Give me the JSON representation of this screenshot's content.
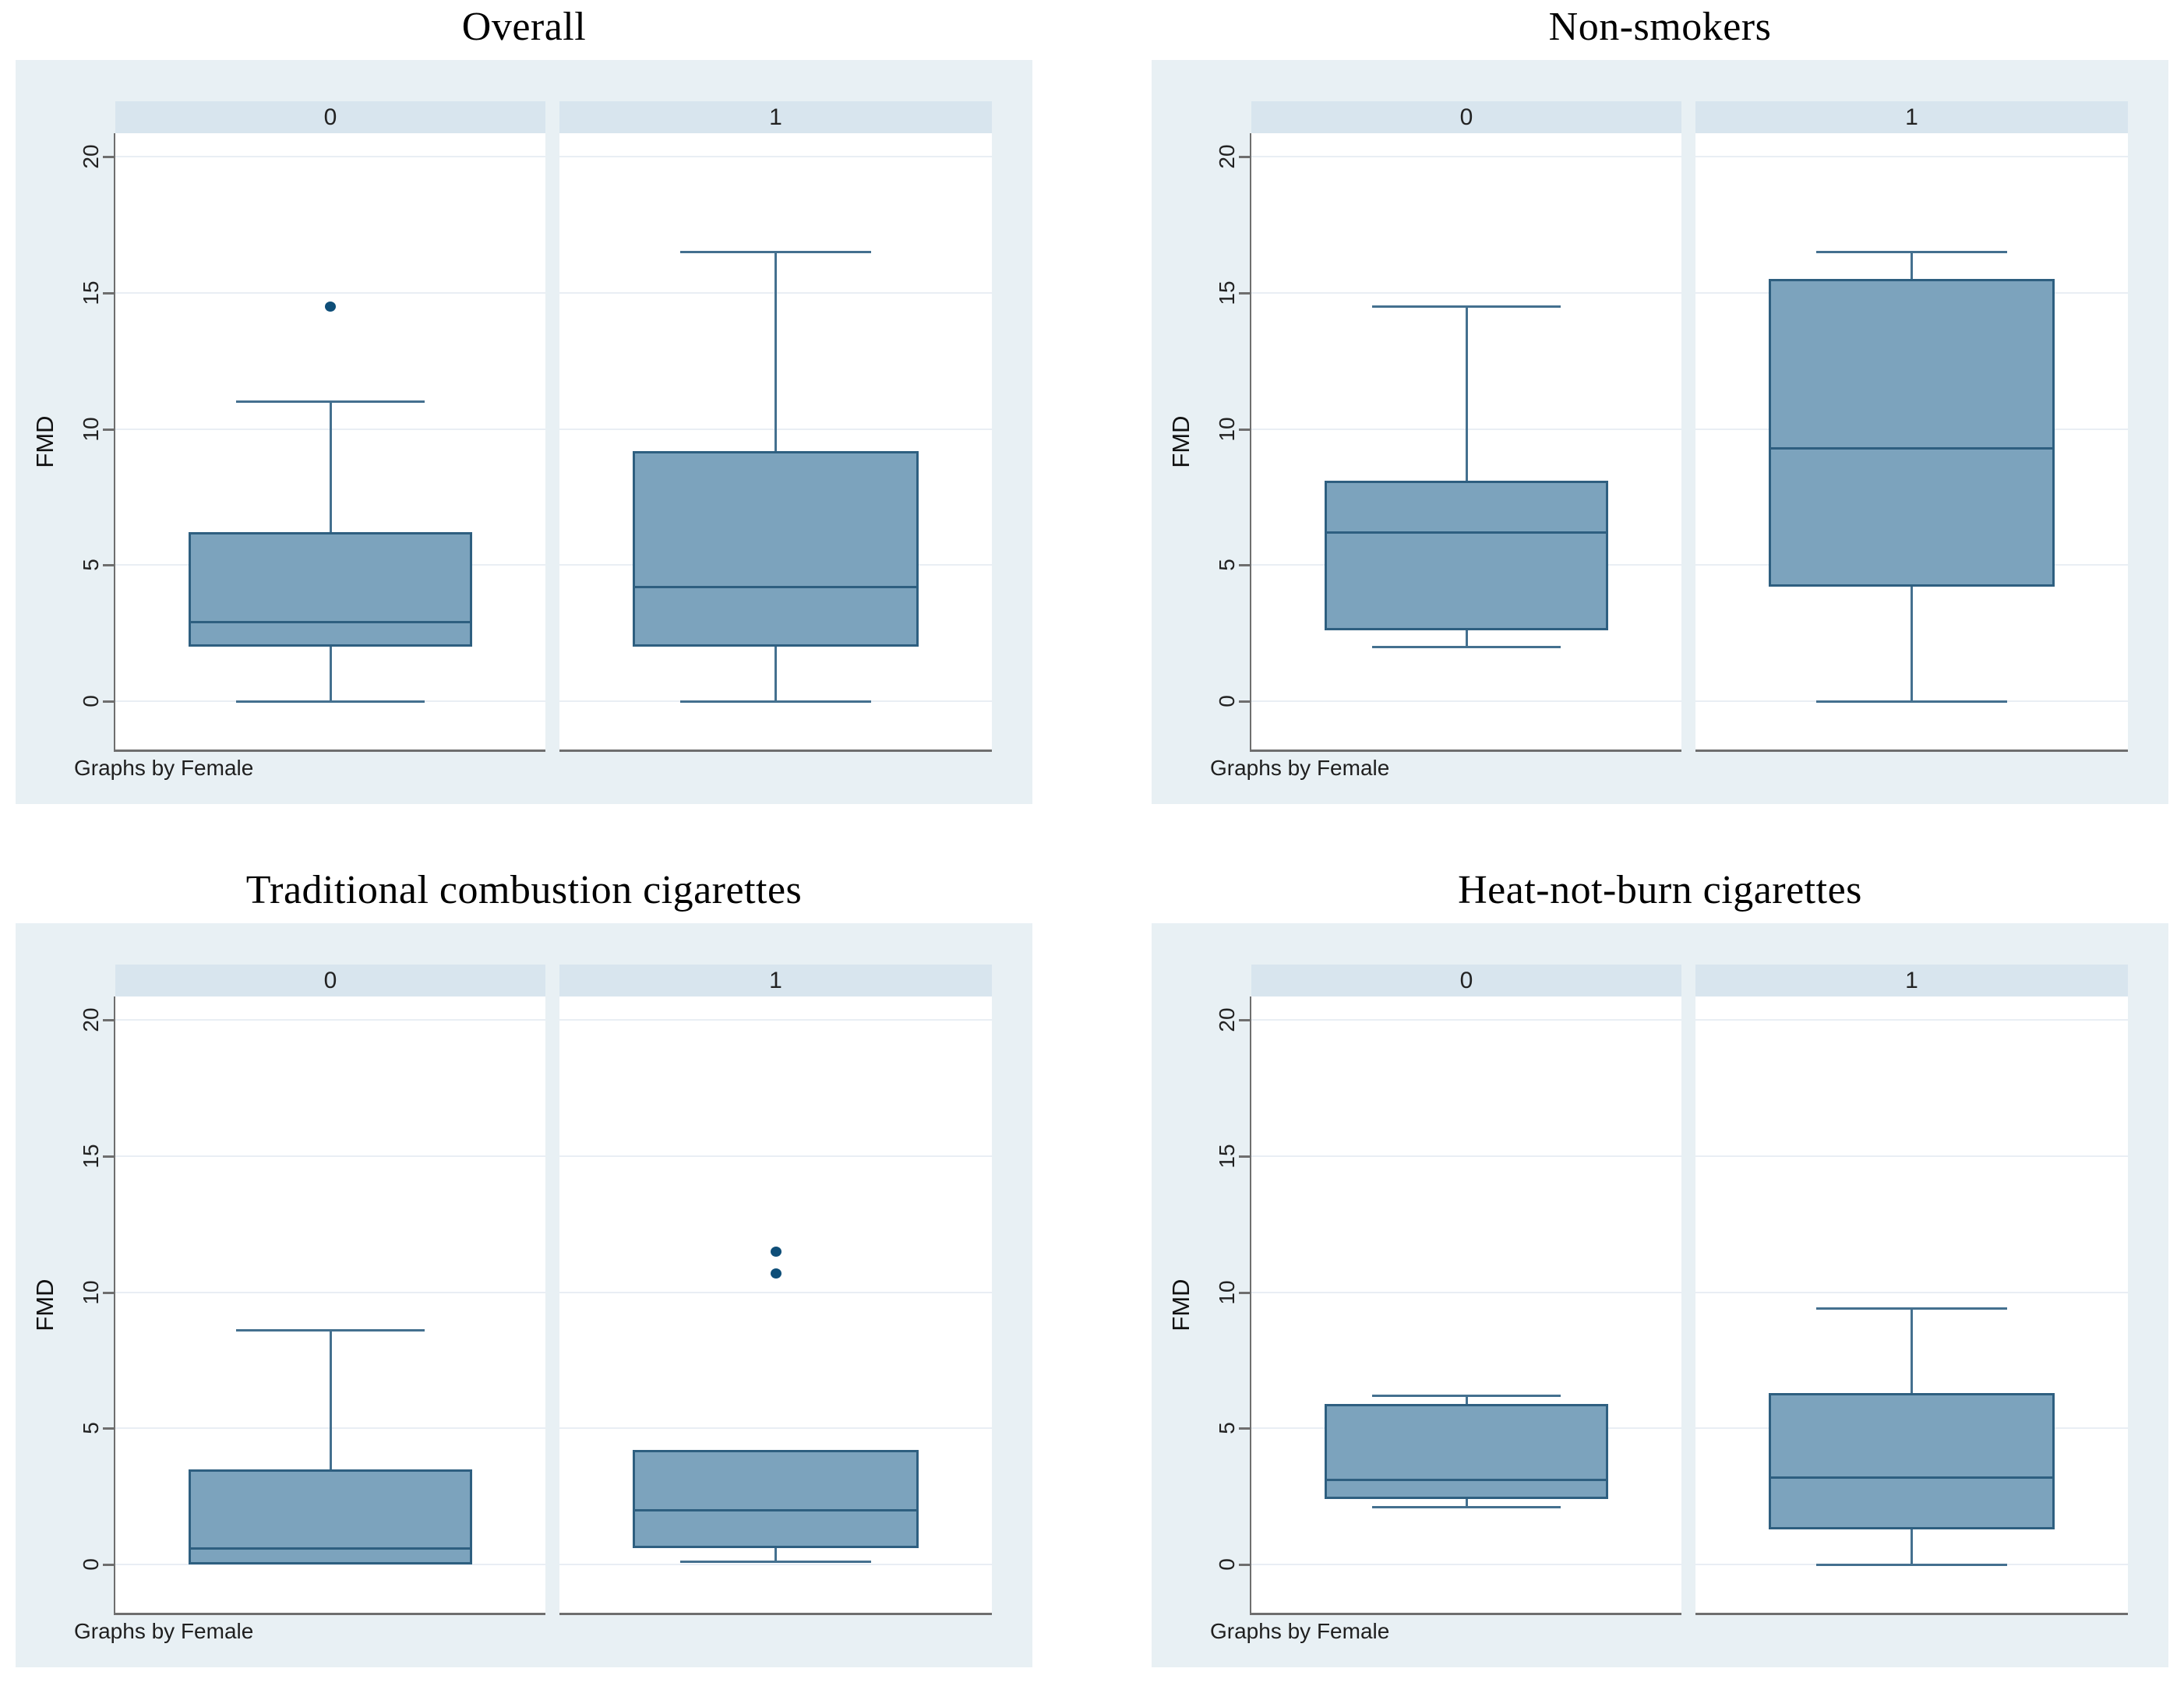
{
  "figure": {
    "note": "Graphs by Female",
    "ylabel": "FMD",
    "group_labels": [
      "0",
      "1"
    ]
  },
  "colors": {
    "page_bg": "#ffffff",
    "panel_bg": "#e8f0f4",
    "strip_bg": "#d8e5ee",
    "plot_bg": "#ffffff",
    "gridline": "#e9eef4",
    "box_fill": "#7ca3bd",
    "box_border": "#2e5f80",
    "whisker": "#44708f",
    "outlier_dot": "#0e4e78",
    "axis": "#6e6e6e",
    "text": "#111111"
  },
  "chart_data": {
    "type": "boxplot",
    "layout": "2x2 grid of panels; each panel contains two box plots split by Female (columns labeled 0 and 1), Stata graph-by style",
    "ylabel": "FMD",
    "yticks": [
      0,
      5,
      10,
      15,
      20
    ],
    "ylim": [
      0,
      20
    ],
    "grid": true,
    "note": "Graphs by Female",
    "group_labels": [
      "0",
      "1"
    ],
    "panels": [
      {
        "title": "Overall",
        "boxes": [
          {
            "group": "0",
            "min": 0,
            "q1": 2.0,
            "median": 2.9,
            "q3": 6.2,
            "max": 11.0,
            "outliers": [
              14.5
            ]
          },
          {
            "group": "1",
            "min": 0,
            "q1": 2.0,
            "median": 4.2,
            "q3": 9.2,
            "max": 16.5,
            "outliers": []
          }
        ]
      },
      {
        "title": "Non-smokers",
        "boxes": [
          {
            "group": "0",
            "min": 2.0,
            "q1": 2.6,
            "median": 6.2,
            "q3": 8.1,
            "max": 14.5,
            "outliers": []
          },
          {
            "group": "1",
            "min": 0,
            "q1": 4.2,
            "median": 9.3,
            "q3": 15.5,
            "max": 16.5,
            "outliers": []
          }
        ]
      },
      {
        "title": "Traditional combustion cigarettes",
        "boxes": [
          {
            "group": "0",
            "min": 0,
            "q1": 0,
            "median": 0.6,
            "q3": 3.5,
            "max": 8.6,
            "outliers": []
          },
          {
            "group": "1",
            "min": 0.1,
            "q1": 0.6,
            "median": 2.0,
            "q3": 4.2,
            "max": 4.2,
            "outliers": [
              10.7,
              11.5
            ]
          }
        ]
      },
      {
        "title": "Heat-not-burn cigarettes",
        "boxes": [
          {
            "group": "0",
            "min": 2.1,
            "q1": 2.4,
            "median": 3.1,
            "q3": 5.9,
            "max": 6.2,
            "outliers": []
          },
          {
            "group": "1",
            "min": 0,
            "q1": 1.3,
            "median": 3.2,
            "q3": 6.3,
            "max": 9.4,
            "outliers": []
          }
        ]
      }
    ]
  }
}
